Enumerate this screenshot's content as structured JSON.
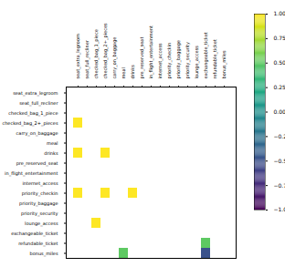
{
  "chart_data": {
    "type": "heatmap",
    "x_categories": [
      "seat_extra_legroom",
      "seat_full_recliner",
      "checked_bag_1_piece",
      "checked_bag_2+_pieces",
      "carry_on_baggage",
      "meal",
      "drinks",
      "pre_reserved_seat",
      "in_flight_entertainment",
      "internet_access",
      "priority_checkin",
      "priority_baggage",
      "priority_security",
      "lounge_access",
      "exchangeable_ticket",
      "refundable_ticket",
      "bonus_miles"
    ],
    "y_categories": [
      "seat_extra_legroom",
      "seat_full_recliner",
      "checked_bag_1_piece",
      "checked_bag_2+_pieces",
      "carry_on_baggage",
      "meal",
      "drinks",
      "pre_reserved_seat",
      "in_flight_entertainment",
      "internet_access",
      "priority_checkin",
      "priority_baggage",
      "priority_security",
      "lounge_access",
      "exchangeable_ticket",
      "refundable_ticket",
      "bonus_miles"
    ],
    "cells": [
      {
        "row": "checked_bag_2+_pieces",
        "column": "seat_extra_legroom",
        "value": 1.0
      },
      {
        "row": "drinks",
        "column": "seat_extra_legroom",
        "value": 1.0
      },
      {
        "row": "drinks",
        "column": "checked_bag_2+_pieces",
        "value": 1.0
      },
      {
        "row": "priority_checkin",
        "column": "seat_extra_legroom",
        "value": 1.0
      },
      {
        "row": "priority_checkin",
        "column": "checked_bag_2+_pieces",
        "value": 1.0
      },
      {
        "row": "priority_checkin",
        "column": "drinks",
        "value": 1.0
      },
      {
        "row": "lounge_access",
        "column": "checked_bag_1_piece",
        "value": 1.0
      },
      {
        "row": "refundable_ticket",
        "column": "exchangeable_ticket",
        "value": 0.5
      },
      {
        "row": "bonus_miles",
        "column": "meal",
        "value": 0.5
      },
      {
        "row": "bonus_miles",
        "column": "exchangeable_ticket",
        "value": -0.5
      }
    ],
    "color": "viridis",
    "colorbar_lim": [
      -1,
      1
    ],
    "colorbar_ticks": [
      {
        "value": -1,
        "label": "−1.00"
      },
      {
        "value": -0.75,
        "label": "−0.75"
      },
      {
        "value": -0.5,
        "label": "−0.50"
      },
      {
        "value": -0.25,
        "label": "−0.25"
      },
      {
        "value": 0,
        "label": "0.00"
      },
      {
        "value": 0.25,
        "label": "0.25"
      },
      {
        "value": 0.5,
        "label": "0.50"
      },
      {
        "value": 0.75,
        "label": "0.75"
      },
      {
        "value": 1,
        "label": "1.00"
      }
    ]
  }
}
